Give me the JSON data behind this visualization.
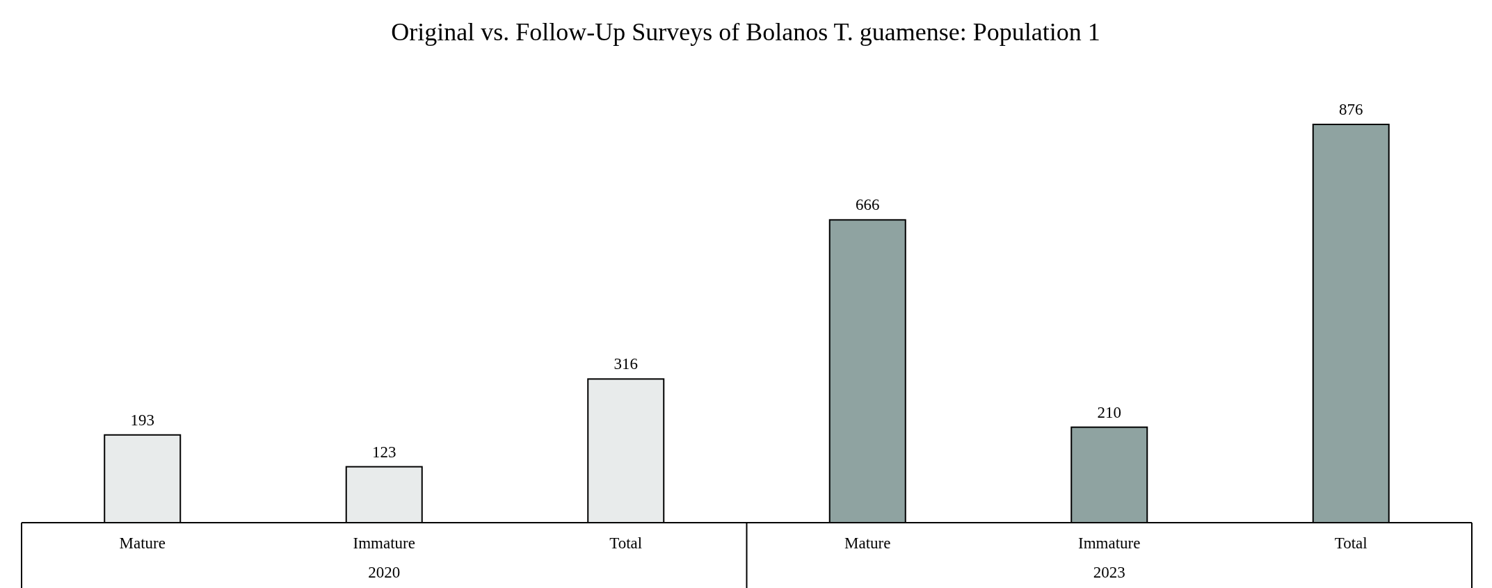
{
  "chart_data": {
    "type": "bar",
    "title": "Original vs. Follow-Up Surveys of Bolanos T. guamense: Population 1",
    "categories": [
      "Mature",
      "Immature",
      "Total",
      "Mature",
      "Immature",
      "Total"
    ],
    "series": [
      {
        "name": "2020",
        "color": "#e8ebeb",
        "values": [
          193,
          123,
          316,
          null,
          null,
          null
        ]
      },
      {
        "name": "2023",
        "color": "#8fa3a1",
        "values": [
          null,
          null,
          null,
          666,
          210,
          876
        ]
      }
    ],
    "data_labels": true
  }
}
